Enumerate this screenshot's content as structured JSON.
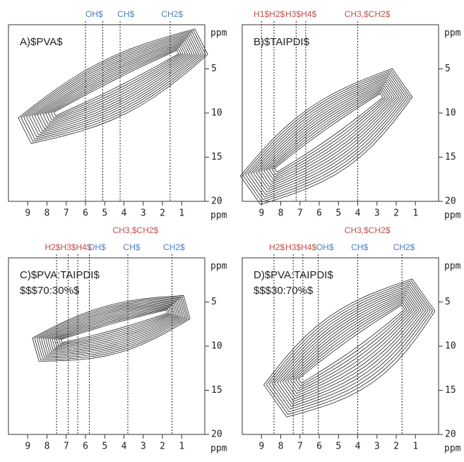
{
  "chart_data": [
    {
      "type": "contour",
      "title": "A)$PVA$",
      "xlabel": "ppm",
      "ylabel": "ppm",
      "xlim": [
        10,
        -0.2
      ],
      "ylim": [
        0,
        20
      ],
      "xticks": [
        9,
        8,
        7,
        6,
        5,
        4,
        3,
        2,
        1
      ],
      "yticks": [
        5,
        10,
        15,
        20
      ],
      "guides": [
        6.0,
        5.1,
        4.2,
        1.6
      ],
      "annotations": [
        {
          "label": "OH$",
          "x": 5.55,
          "color": "#4f81bd"
        },
        {
          "label": "CH$",
          "x": 3.9,
          "color": "#4f81bd"
        },
        {
          "label": "CH2$",
          "x": 1.5,
          "color": "#4f81bd"
        }
      ]
    },
    {
      "type": "contour",
      "title": "B)$TAIPDI$",
      "xlabel": "ppm",
      "ylabel": "ppm",
      "xlim": [
        10,
        -0.2
      ],
      "ylim": [
        0,
        20
      ],
      "xticks": [
        9,
        8,
        7,
        6,
        5,
        4,
        3,
        2,
        1
      ],
      "yticks": [
        5,
        10,
        15,
        20
      ],
      "guides": [
        9.0,
        8.35,
        7.2,
        6.7,
        4.0
      ],
      "annotations": [
        {
          "label": "H1$H2$",
          "x": 8.6,
          "color": "#c0504d"
        },
        {
          "label": "H3$H4$",
          "x": 6.95,
          "color": "#c0504d"
        },
        {
          "label": "CH3,$CH2$",
          "x": 3.5,
          "color": "#c0504d"
        }
      ]
    },
    {
      "type": "contour",
      "title": "C)$PVA:TAIPDI$",
      "subtitle": "$$$70:30%$",
      "xlabel": "ppm",
      "ylabel": "ppm",
      "xlim": [
        10,
        -0.2
      ],
      "ylim": [
        0,
        20
      ],
      "xticks": [
        9,
        8,
        7,
        6,
        5,
        4,
        3,
        2,
        1
      ],
      "yticks": [
        5,
        10,
        15,
        20
      ],
      "guides": [
        7.5,
        6.9,
        6.4,
        5.8,
        3.8,
        1.5
      ],
      "annotations": [
        {
          "label": "H2$H3$H4$",
          "x": 6.9,
          "color": "#c0504d"
        },
        {
          "label": "OH$",
          "x": 5.4,
          "color": "#4f81bd"
        },
        {
          "label": "CH$",
          "x": 3.6,
          "color": "#4f81bd"
        },
        {
          "label": "CH2$",
          "x": 1.4,
          "color": "#4f81bd"
        },
        {
          "label": "CH3,$CH2$",
          "x": 3.4,
          "color": "#c0504d"
        }
      ]
    },
    {
      "type": "contour",
      "title": "D)$PVA:TAIPDI$",
      "subtitle": "$$$30:70%$",
      "xlabel": "ppm",
      "ylabel": "ppm",
      "xlim": [
        10,
        -0.2
      ],
      "ylim": [
        0,
        20
      ],
      "xticks": [
        9,
        8,
        7,
        6,
        5,
        4,
        3,
        2,
        1
      ],
      "yticks": [
        5,
        10,
        15,
        20
      ],
      "guides": [
        8.35,
        7.35,
        6.85,
        6.05,
        4.0,
        1.7
      ],
      "annotations": [
        {
          "label": "H2$",
          "x": 8.2,
          "color": "#c0504d"
        },
        {
          "label": "H3$H4$",
          "x": 6.95,
          "color": "#c0504d"
        },
        {
          "label": "OH$",
          "x": 5.7,
          "color": "#4f81bd"
        },
        {
          "label": "CH$",
          "x": 3.9,
          "color": "#4f81bd"
        },
        {
          "label": "CH2$",
          "x": 1.6,
          "color": "#4f81bd"
        },
        {
          "label": "CH3,$CH2$",
          "x": 3.5,
          "color": "#c0504d"
        }
      ]
    }
  ]
}
